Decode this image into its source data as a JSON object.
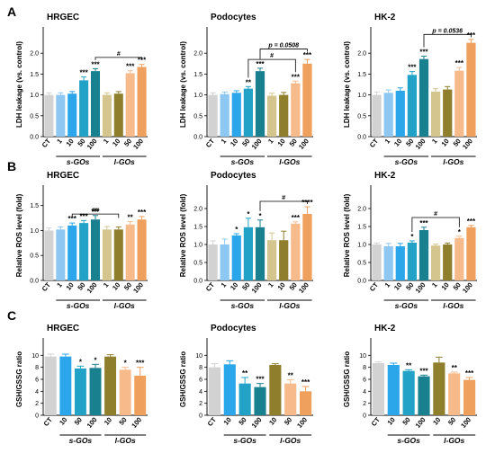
{
  "colors": [
    "#d2d2d2",
    "#8ec8f2",
    "#2ba6ea",
    "#22a2c7",
    "#18808f",
    "#d3c58d",
    "#8f7f2c",
    "#f7ba8a",
    "#efa05d",
    "#d28e3a"
  ],
  "panels": [
    {
      "letter": "A",
      "ylabel": "LDH leakage (vs. control)"
    },
    {
      "letter": "B",
      "ylabel": "Relative ROS level (fold)"
    },
    {
      "letter": "C",
      "ylabel": "GSH/GSSG ratio"
    }
  ],
  "chart_data": [
    {
      "type": "bar",
      "panel": "A",
      "title": "HRGEC",
      "ylabel": "LDH leakage (vs. control)",
      "ylim": [
        0,
        2.5
      ],
      "yticks": [
        "0.0",
        "0.5",
        "1.0",
        "1.5",
        "2.0"
      ],
      "categories": [
        "CT",
        "1",
        "10",
        "50",
        "100",
        "1",
        "10",
        "50",
        "100"
      ],
      "color_index": [
        0,
        1,
        2,
        3,
        4,
        5,
        6,
        7,
        8
      ],
      "values": [
        1.0,
        1.0,
        1.03,
        1.35,
        1.57,
        1.0,
        1.03,
        1.52,
        1.67
      ],
      "errors": [
        0.05,
        0.05,
        0.05,
        0.08,
        0.06,
        0.05,
        0.05,
        0.06,
        0.06
      ],
      "significance": [
        "",
        "",
        "",
        "***",
        "***",
        "",
        "",
        "***",
        "***"
      ],
      "groups": [
        {
          "label": "s-GOs",
          "from": 1,
          "to": 4
        },
        {
          "label": "l-GOs",
          "from": 5,
          "to": 8
        }
      ],
      "brackets": [
        {
          "from": 4,
          "to": 8,
          "label": "#",
          "level": 1.9
        }
      ]
    },
    {
      "type": "bar",
      "panel": "A",
      "title": "Podocytes",
      "ylabel": "LDH leakage (vs. control)",
      "ylim": [
        0,
        2.5
      ],
      "yticks": [
        "0.0",
        "0.5",
        "1.0",
        "1.5",
        "2.0"
      ],
      "categories": [
        "CT",
        "1",
        "10",
        "50",
        "100",
        "1",
        "10",
        "50",
        "100"
      ],
      "color_index": [
        0,
        1,
        2,
        3,
        4,
        5,
        6,
        7,
        8
      ],
      "values": [
        1.0,
        1.02,
        1.05,
        1.15,
        1.57,
        0.98,
        1.0,
        1.28,
        1.75
      ],
      "errors": [
        0.05,
        0.05,
        0.05,
        0.05,
        0.07,
        0.06,
        0.06,
        0.05,
        0.1
      ],
      "significance": [
        "",
        "",
        "",
        "**",
        "***",
        "",
        "",
        "***",
        "***"
      ],
      "groups": [
        {
          "label": "s-GOs",
          "from": 1,
          "to": 4
        },
        {
          "label": "l-GOs",
          "from": 5,
          "to": 8
        }
      ],
      "brackets": [
        {
          "from": 3,
          "to": 7,
          "label": "#",
          "level": 1.85
        },
        {
          "from": 4,
          "to": 8,
          "label": "p = 0.0508",
          "level": 2.1
        }
      ]
    },
    {
      "type": "bar",
      "panel": "A",
      "title": "HK-2",
      "ylabel": "LDH leakage (vs. control)",
      "ylim": [
        0,
        2.5
      ],
      "yticks": [
        "0.0",
        "0.5",
        "1.0",
        "1.5",
        "2.0"
      ],
      "categories": [
        "CT",
        "1",
        "10",
        "50",
        "100",
        "1",
        "10",
        "50",
        "100"
      ],
      "color_index": [
        0,
        1,
        2,
        3,
        4,
        5,
        6,
        7,
        8
      ],
      "values": [
        1.0,
        1.05,
        1.1,
        1.48,
        1.86,
        1.08,
        1.13,
        1.58,
        2.25
      ],
      "errors": [
        0.07,
        0.07,
        0.07,
        0.08,
        0.07,
        0.07,
        0.07,
        0.08,
        0.08
      ],
      "significance": [
        "",
        "",
        "",
        "***",
        "***",
        "",
        "",
        "***",
        "***"
      ],
      "groups": [
        {
          "label": "s-GOs",
          "from": 1,
          "to": 4
        },
        {
          "label": "l-GOs",
          "from": 5,
          "to": 8
        }
      ],
      "brackets": [
        {
          "from": 4,
          "to": 8,
          "label": "p = 0.0536",
          "level": 2.45
        }
      ]
    },
    {
      "type": "bar",
      "panel": "B",
      "title": "HRGEC",
      "ylabel": "Relative ROS level (fold)",
      "ylim": [
        0,
        1.8
      ],
      "yticks": [
        "0.0",
        "0.5",
        "1.0",
        "1.5"
      ],
      "categories": [
        "CT",
        "1",
        "10",
        "50",
        "100",
        "1",
        "10",
        "50",
        "100"
      ],
      "color_index": [
        0,
        1,
        2,
        3,
        4,
        5,
        6,
        7,
        8
      ],
      "values": [
        1.0,
        1.02,
        1.1,
        1.15,
        1.22,
        1.02,
        1.02,
        1.12,
        1.22
      ],
      "errors": [
        0.05,
        0.05,
        0.05,
        0.05,
        0.08,
        0.06,
        0.05,
        0.06,
        0.06
      ],
      "significance": [
        "",
        "",
        "***",
        "***",
        "***",
        "",
        "",
        "**",
        "***"
      ],
      "groups": [
        {
          "label": "s-GOs",
          "from": 1,
          "to": 4
        },
        {
          "label": "l-GOs",
          "from": 5,
          "to": 8
        }
      ],
      "brackets": [
        {
          "from": 2,
          "to": 6,
          "label": "##",
          "level": 1.33
        }
      ]
    },
    {
      "type": "bar",
      "panel": "B",
      "title": "Podocytes",
      "ylabel": "Relative ROS level (fold)",
      "ylim": [
        0,
        2.5
      ],
      "yticks": [
        "0.0",
        "0.5",
        "1.0",
        "1.5",
        "2.0"
      ],
      "categories": [
        "CT",
        "1",
        "10",
        "50",
        "100",
        "1",
        "10",
        "50",
        "100"
      ],
      "color_index": [
        0,
        1,
        2,
        3,
        4,
        5,
        6,
        7,
        8
      ],
      "values": [
        1.0,
        1.0,
        1.25,
        1.48,
        1.48,
        1.12,
        1.12,
        1.58,
        1.85
      ],
      "errors": [
        0.1,
        0.15,
        0.05,
        0.25,
        0.2,
        0.2,
        0.25,
        0.05,
        0.2
      ],
      "significance": [
        "",
        "",
        "*",
        "*",
        "*",
        "",
        "",
        "***",
        "****"
      ],
      "groups": [
        {
          "label": "s-GOs",
          "from": 1,
          "to": 4
        },
        {
          "label": "l-GOs",
          "from": 5,
          "to": 8
        }
      ],
      "brackets": [
        {
          "from": 4,
          "to": 8,
          "label": "#",
          "level": 2.2
        }
      ]
    },
    {
      "type": "bar",
      "panel": "B",
      "title": "HK-2",
      "ylabel": "Relative ROS level (fold)",
      "ylim": [
        0,
        2.5
      ],
      "yticks": [
        "0.0",
        "0.5",
        "1.0",
        "1.5",
        "2.0"
      ],
      "categories": [
        "CT",
        "1",
        "10",
        "50",
        "100",
        "1",
        "10",
        "50",
        "100"
      ],
      "color_index": [
        0,
        1,
        2,
        3,
        4,
        5,
        6,
        7,
        8
      ],
      "values": [
        1.0,
        0.95,
        0.95,
        1.05,
        1.4,
        0.97,
        1.0,
        1.18,
        1.48
      ],
      "errors": [
        0.04,
        0.08,
        0.08,
        0.05,
        0.08,
        0.04,
        0.04,
        0.05,
        0.05
      ],
      "significance": [
        "",
        "",
        "",
        "*",
        "***",
        "",
        "",
        "*",
        "***"
      ],
      "groups": [
        {
          "label": "s-GOs",
          "from": 1,
          "to": 4
        },
        {
          "label": "l-GOs",
          "from": 5,
          "to": 8
        }
      ],
      "brackets": [
        {
          "from": 3,
          "to": 7,
          "label": "#",
          "level": 1.75
        }
      ]
    },
    {
      "type": "bar",
      "panel": "C",
      "title": "HRGEC",
      "ylabel": "GSH/GSSG ratio",
      "ylim": [
        0,
        12
      ],
      "yticks": [
        "0",
        "2",
        "4",
        "6",
        "8",
        "10"
      ],
      "categories": [
        "CT",
        "10",
        "50",
        "100",
        "10",
        "50",
        "100"
      ],
      "color_index": [
        0,
        2,
        3,
        4,
        6,
        7,
        8
      ],
      "values": [
        9.8,
        9.8,
        7.8,
        7.9,
        9.8,
        7.6,
        6.6
      ],
      "errors": [
        0.4,
        0.4,
        0.4,
        0.6,
        0.3,
        0.4,
        1.4
      ],
      "significance": [
        "",
        "",
        "*",
        "*",
        "",
        "*",
        "***"
      ],
      "groups": [
        {
          "label": "s-GOs",
          "from": 1,
          "to": 3
        },
        {
          "label": "l-GOs",
          "from": 4,
          "to": 6
        }
      ],
      "brackets": []
    },
    {
      "type": "bar",
      "panel": "C",
      "title": "Podocytes",
      "ylabel": "GSH/GSSG ratio",
      "ylim": [
        0,
        12
      ],
      "yticks": [
        "0",
        "2",
        "4",
        "6",
        "8",
        "10"
      ],
      "categories": [
        "CT",
        "10",
        "50",
        "100",
        "10",
        "50",
        "100"
      ],
      "color_index": [
        0,
        2,
        3,
        4,
        6,
        7,
        8
      ],
      "values": [
        8.0,
        8.5,
        5.3,
        4.7,
        8.4,
        5.3,
        4.0
      ],
      "errors": [
        0.6,
        0.6,
        1.0,
        0.6,
        0.2,
        0.6,
        0.8
      ],
      "significance": [
        "",
        "",
        "**",
        "***",
        "",
        "**",
        "***"
      ],
      "groups": [
        {
          "label": "s-GOs",
          "from": 1,
          "to": 3
        },
        {
          "label": "l-GOs",
          "from": 4,
          "to": 6
        }
      ],
      "brackets": []
    },
    {
      "type": "bar",
      "panel": "C",
      "title": "HK-2",
      "ylabel": "GSH/GSSG ratio",
      "ylim": [
        0,
        12
      ],
      "yticks": [
        "0",
        "2",
        "4",
        "6",
        "8",
        "10"
      ],
      "categories": [
        "CT",
        "10",
        "50",
        "100",
        "10",
        "50",
        "100"
      ],
      "color_index": [
        0,
        2,
        3,
        4,
        6,
        7,
        8
      ],
      "values": [
        8.7,
        8.4,
        7.4,
        6.5,
        8.8,
        7.0,
        5.9
      ],
      "errors": [
        0.2,
        0.3,
        0.2,
        0.2,
        0.9,
        0.2,
        0.4
      ],
      "significance": [
        "",
        "",
        "**",
        "***",
        "",
        "**",
        "***"
      ],
      "groups": [
        {
          "label": "s-GOs",
          "from": 1,
          "to": 3
        },
        {
          "label": "l-GOs",
          "from": 4,
          "to": 6
        }
      ],
      "brackets": []
    }
  ]
}
